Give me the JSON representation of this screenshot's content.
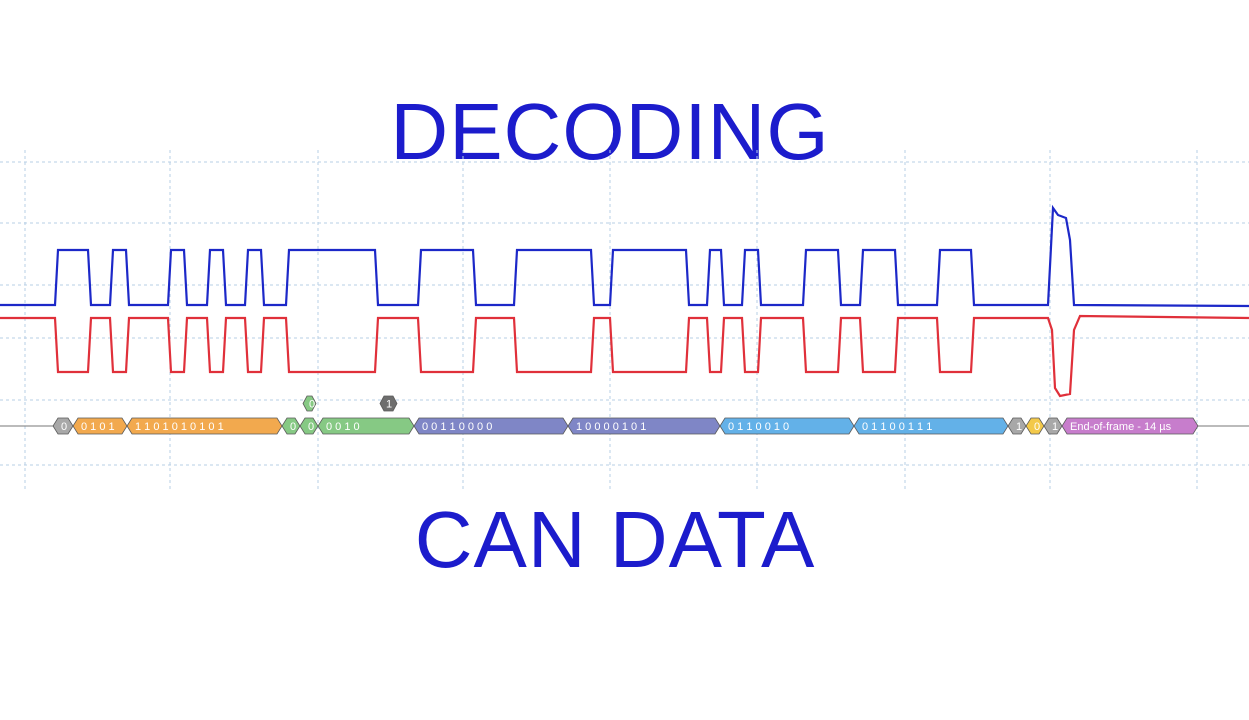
{
  "title_top": "DECODING",
  "title_bottom": "CAN DATA",
  "colors": {
    "title": "#1c1ccc",
    "can_high": "#1c28c8",
    "can_low": "#e0303a",
    "grid": "#b7cfe6",
    "seg_orange": "#f2a94e",
    "seg_green": "#86c984",
    "seg_purple": "#7f86c6",
    "seg_blue": "#63b1e8",
    "seg_grey": "#a8a8a8",
    "seg_yellow": "#f3c94a",
    "seg_magenta": "#c77dcc",
    "seg_darkgrey": "#6e6e6e"
  },
  "decode": {
    "segments": [
      {
        "kind": "grey",
        "text": "0"
      },
      {
        "kind": "orange",
        "text": "0 1 0 1"
      },
      {
        "kind": "orange",
        "text": "1 1 0 1 0 1 0 1 0 1"
      },
      {
        "kind": "green",
        "text": "0"
      },
      {
        "kind": "green",
        "text": "0"
      },
      {
        "kind": "green",
        "text": "0 0        1 0"
      },
      {
        "kind": "purple",
        "text": "0 0 1 1 0 0 0 0"
      },
      {
        "kind": "purple",
        "text": "1 0 0 0 0 1 0 1"
      },
      {
        "kind": "blue",
        "text": "0 1 1 0 0 1 0"
      },
      {
        "kind": "blue",
        "text": "0 1 1 0 0 1 1 1"
      },
      {
        "kind": "grey",
        "text": "1"
      },
      {
        "kind": "yellow",
        "text": "0"
      },
      {
        "kind": "grey",
        "text": "1"
      },
      {
        "kind": "magenta",
        "text": "End-of-frame - 14 µs"
      }
    ],
    "floating": [
      {
        "kind": "green",
        "text": "0"
      },
      {
        "kind": "darkgrey",
        "text": "1"
      }
    ]
  }
}
